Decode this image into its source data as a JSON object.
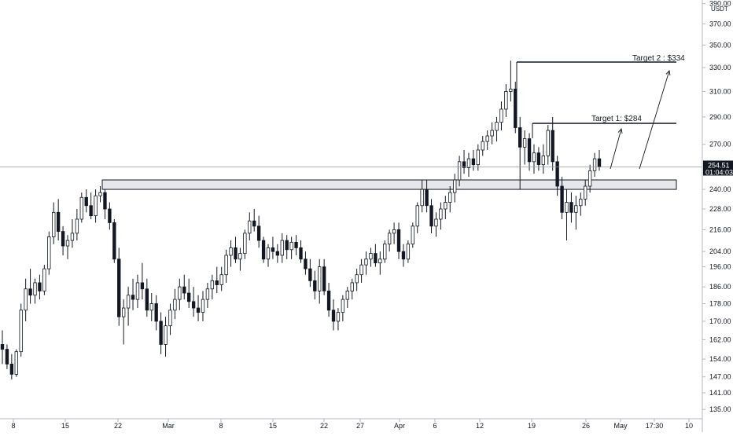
{
  "chart_data": {
    "type": "candlestick",
    "currency": "USDT",
    "y_axis": {
      "scale": "log",
      "range": [
        132,
        392
      ],
      "ticks": [
        390.0,
        370.0,
        350.0,
        330.0,
        310.0,
        290.0,
        270.0,
        254.51,
        240.0,
        228.0,
        216.0,
        204.0,
        196.0,
        186.0,
        178.0,
        170.0,
        162.0,
        154.0,
        147.0,
        141.0,
        135.0
      ],
      "tick_labels": [
        "390.00",
        "370.00",
        "350.00",
        "330.00",
        "310.00",
        "290.00",
        "270.00",
        "",
        "240.00",
        "228.00",
        "216.00",
        "204.00",
        "196.00",
        "186.00",
        "178.00",
        "170.00",
        "162.00",
        "154.00",
        "147.00",
        "141.00",
        "135.00"
      ]
    },
    "x_axis": {
      "tick_labels": [
        "8",
        "15",
        "22",
        "Mar",
        "8",
        "15",
        "22",
        "27",
        "Apr",
        "6",
        "12",
        "19",
        "26",
        "May",
        "17:30",
        "10"
      ]
    },
    "last_price": {
      "value": 254.51,
      "label": "254.51",
      "countdown": "01:04:03"
    },
    "candles_ohlc": [
      [
        160,
        166,
        152,
        158
      ],
      [
        158,
        160,
        150,
        152
      ],
      [
        152,
        156,
        146,
        148
      ],
      [
        148,
        158,
        147,
        157
      ],
      [
        157,
        178,
        155,
        175
      ],
      [
        175,
        190,
        170,
        185
      ],
      [
        185,
        195,
        178,
        182
      ],
      [
        182,
        190,
        178,
        188
      ],
      [
        188,
        192,
        180,
        184
      ],
      [
        184,
        197,
        182,
        195
      ],
      [
        195,
        215,
        192,
        212
      ],
      [
        212,
        232,
        208,
        226
      ],
      [
        226,
        234,
        210,
        215
      ],
      [
        215,
        218,
        202,
        207
      ],
      [
        207,
        213,
        200,
        210
      ],
      [
        210,
        222,
        206,
        214
      ],
      [
        214,
        228,
        210,
        222
      ],
      [
        222,
        238,
        220,
        235
      ],
      [
        235,
        240,
        226,
        230
      ],
      [
        230,
        238,
        222,
        224
      ],
      [
        224,
        240,
        220,
        236
      ],
      [
        236,
        242,
        232,
        238
      ],
      [
        238,
        240,
        222,
        228
      ],
      [
        228,
        232,
        216,
        220
      ],
      [
        220,
        222,
        198,
        200
      ],
      [
        200,
        206,
        168,
        172
      ],
      [
        172,
        180,
        160,
        176
      ],
      [
        176,
        186,
        168,
        182
      ],
      [
        182,
        190,
        175,
        180
      ],
      [
        180,
        192,
        176,
        188
      ],
      [
        188,
        198,
        180,
        185
      ],
      [
        185,
        190,
        172,
        175
      ],
      [
        175,
        183,
        170,
        178
      ],
      [
        178,
        182,
        166,
        170
      ],
      [
        170,
        174,
        156,
        160
      ],
      [
        160,
        172,
        155,
        168
      ],
      [
        168,
        178,
        164,
        175
      ],
      [
        175,
        185,
        171,
        180
      ],
      [
        180,
        190,
        175,
        186
      ],
      [
        186,
        192,
        180,
        183
      ],
      [
        183,
        190,
        176,
        179
      ],
      [
        179,
        186,
        172,
        176
      ],
      [
        176,
        182,
        170,
        174
      ],
      [
        174,
        184,
        170,
        180
      ],
      [
        180,
        188,
        176,
        185
      ],
      [
        185,
        192,
        180,
        189
      ],
      [
        189,
        196,
        183,
        187
      ],
      [
        187,
        196,
        184,
        192
      ],
      [
        192,
        205,
        188,
        202
      ],
      [
        202,
        210,
        196,
        206
      ],
      [
        206,
        212,
        198,
        200
      ],
      [
        200,
        206,
        194,
        203
      ],
      [
        203,
        216,
        200,
        214
      ],
      [
        214,
        226,
        210,
        221
      ],
      [
        221,
        228,
        215,
        218
      ],
      [
        218,
        224,
        206,
        210
      ],
      [
        210,
        212,
        198,
        200
      ],
      [
        200,
        208,
        196,
        206
      ],
      [
        206,
        212,
        200,
        204
      ],
      [
        204,
        208,
        198,
        202
      ],
      [
        202,
        214,
        198,
        210
      ],
      [
        210,
        213,
        200,
        205
      ],
      [
        205,
        212,
        200,
        209
      ],
      [
        209,
        213,
        202,
        206
      ],
      [
        206,
        210,
        198,
        200
      ],
      [
        200,
        204,
        192,
        195
      ],
      [
        195,
        200,
        186,
        189
      ],
      [
        189,
        194,
        180,
        184
      ],
      [
        184,
        200,
        178,
        196
      ],
      [
        196,
        200,
        182,
        184
      ],
      [
        184,
        188,
        172,
        175
      ],
      [
        175,
        180,
        166,
        170
      ],
      [
        170,
        176,
        166,
        174
      ],
      [
        174,
        182,
        170,
        180
      ],
      [
        180,
        186,
        176,
        184
      ],
      [
        184,
        190,
        180,
        188
      ],
      [
        188,
        195,
        184,
        192
      ],
      [
        192,
        200,
        188,
        197
      ],
      [
        197,
        204,
        192,
        200
      ],
      [
        200,
        206,
        196,
        203
      ],
      [
        203,
        208,
        196,
        198
      ],
      [
        198,
        204,
        192,
        200
      ],
      [
        200,
        210,
        198,
        208
      ],
      [
        208,
        216,
        204,
        214
      ],
      [
        214,
        220,
        208,
        216
      ],
      [
        216,
        220,
        200,
        204
      ],
      [
        204,
        208,
        196,
        200
      ],
      [
        200,
        210,
        198,
        208
      ],
      [
        208,
        220,
        206,
        218
      ],
      [
        218,
        232,
        214,
        230
      ],
      [
        230,
        246,
        226,
        240
      ],
      [
        240,
        246,
        226,
        230
      ],
      [
        230,
        234,
        214,
        218
      ],
      [
        218,
        226,
        212,
        222
      ],
      [
        222,
        232,
        216,
        228
      ],
      [
        228,
        236,
        222,
        232
      ],
      [
        232,
        242,
        226,
        238
      ],
      [
        238,
        250,
        232,
        246
      ],
      [
        246,
        262,
        242,
        258
      ],
      [
        258,
        266,
        250,
        254
      ],
      [
        254,
        264,
        248,
        260
      ],
      [
        260,
        266,
        252,
        256
      ],
      [
        256,
        270,
        252,
        266
      ],
      [
        266,
        276,
        262,
        272
      ],
      [
        272,
        280,
        266,
        276
      ],
      [
        276,
        286,
        270,
        280
      ],
      [
        280,
        290,
        272,
        286
      ],
      [
        286,
        302,
        280,
        296
      ],
      [
        296,
        316,
        290,
        310
      ],
      [
        310,
        336,
        302,
        312
      ],
      [
        312,
        318,
        278,
        282
      ],
      [
        282,
        290,
        240,
        268
      ],
      [
        268,
        280,
        256,
        274
      ],
      [
        274,
        278,
        252,
        258
      ],
      [
        258,
        270,
        250,
        264
      ],
      [
        264,
        268,
        252,
        256
      ],
      [
        256,
        270,
        250,
        262
      ],
      [
        262,
        284,
        256,
        280
      ],
      [
        280,
        290,
        252,
        258
      ],
      [
        258,
        262,
        236,
        242
      ],
      [
        242,
        248,
        222,
        226
      ],
      [
        226,
        240,
        210,
        232
      ],
      [
        232,
        238,
        220,
        226
      ],
      [
        226,
        236,
        216,
        230
      ],
      [
        230,
        238,
        224,
        234
      ],
      [
        234,
        246,
        230,
        242
      ],
      [
        242,
        256,
        238,
        252
      ],
      [
        252,
        264,
        248,
        260
      ],
      [
        260,
        266,
        252,
        254.5
      ]
    ],
    "annotations": [
      {
        "label": "Target 2 : $334",
        "level": 334
      },
      {
        "label": "Target 1: $284",
        "level": 284
      }
    ],
    "support_zone": {
      "top": 246,
      "bottom": 240
    }
  }
}
